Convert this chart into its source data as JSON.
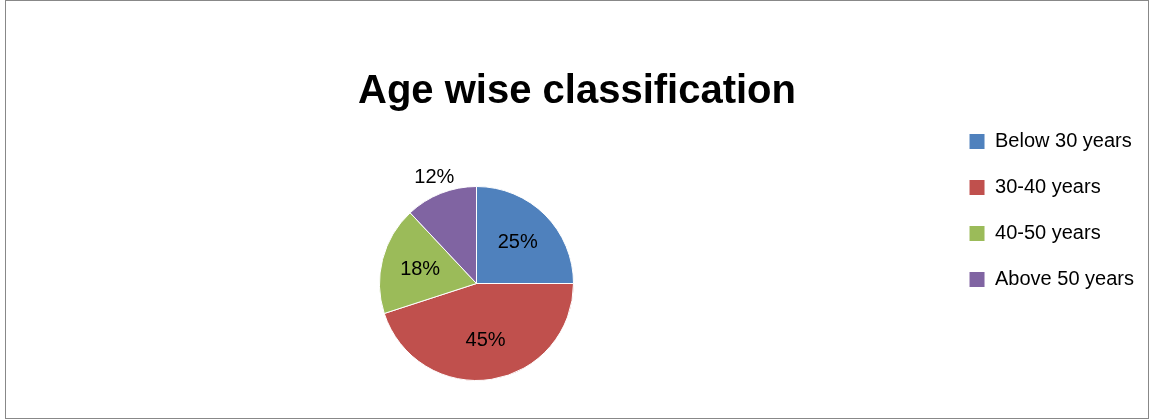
{
  "chart_data": {
    "type": "pie",
    "title": "Age wise classification",
    "categories": [
      "Below 30 years",
      "30-40 years",
      "40-50 years",
      "Above 50 years"
    ],
    "values": [
      25,
      45,
      18,
      12
    ],
    "value_labels": [
      "25%",
      "45%",
      "18%",
      "12%"
    ],
    "colors": [
      "#4f81bd",
      "#c0504d",
      "#9bbb59",
      "#8064a2"
    ],
    "legend": "right"
  }
}
